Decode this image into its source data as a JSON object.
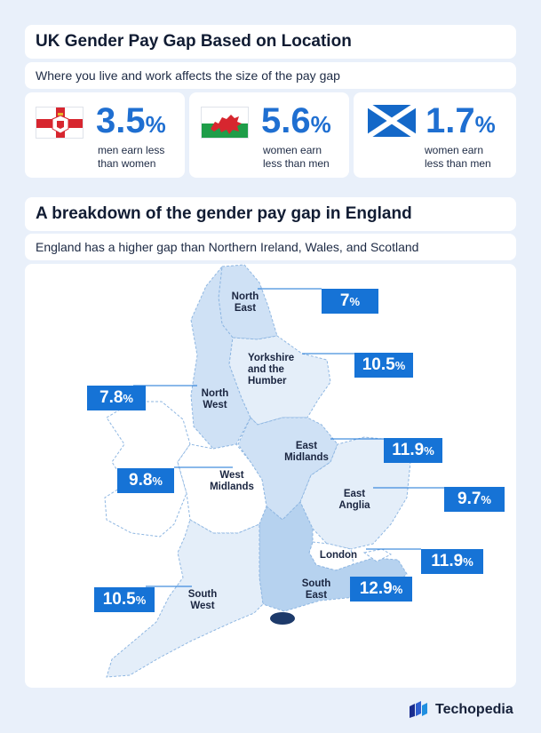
{
  "section1": {
    "title": "UK Gender Pay Gap Based on Location",
    "subtitle": "Where you live and work affects the size of the pay gap",
    "stats": [
      {
        "flag": "northern-ireland-flag",
        "value": "3.5",
        "unit": "%",
        "caption_line1": "men earn less",
        "caption_line2": "than women"
      },
      {
        "flag": "wales-flag",
        "value": "5.6",
        "unit": "%",
        "caption_line1": "women earn",
        "caption_line2": "less than men"
      },
      {
        "flag": "scotland-flag",
        "value": "1.7",
        "unit": "%",
        "caption_line1": "women earn",
        "caption_line2": "less than men"
      }
    ]
  },
  "section2": {
    "title": "A breakdown of the gender pay gap in England",
    "subtitle": "England has a higher gap than Northern Ireland, Wales, and Scotland"
  },
  "map": {
    "colors": {
      "light": "#e4eef9",
      "medium": "#cfe1f5",
      "dark": "#b6d2ef",
      "white": "#ffffff",
      "badge": "#1673d6"
    },
    "regions": [
      {
        "id": "north-east",
        "line1": "North",
        "line2": "East",
        "value": "7",
        "unit": "%",
        "shade": "medium"
      },
      {
        "id": "yorkshire",
        "line1": "Yorkshire",
        "line2": "and the",
        "line3": "Humber",
        "value": "10.5",
        "unit": "%",
        "shade": "light"
      },
      {
        "id": "north-west",
        "line1": "North",
        "line2": "West",
        "value": "7.8",
        "unit": "%",
        "shade": "medium"
      },
      {
        "id": "east-midlands",
        "line1": "East",
        "line2": "Midlands",
        "value": "11.9",
        "unit": "%",
        "shade": "medium"
      },
      {
        "id": "west-midlands",
        "line1": "West",
        "line2": "Midlands",
        "value": "9.8",
        "unit": "%",
        "shade": "white"
      },
      {
        "id": "east-anglia",
        "line1": "East",
        "line2": "Anglia",
        "value": "9.7",
        "unit": "%",
        "shade": "light"
      },
      {
        "id": "london",
        "line1": "London",
        "value": "11.9",
        "unit": "%",
        "shade": "white"
      },
      {
        "id": "south-east",
        "line1": "South",
        "line2": "East",
        "value": "12.9",
        "unit": "%",
        "shade": "dark"
      },
      {
        "id": "south-west",
        "line1": "South",
        "line2": "West",
        "value": "10.5",
        "unit": "%",
        "shade": "light"
      }
    ]
  },
  "brand": {
    "name": "Techopedia",
    "icon": "techopedia-logo-icon"
  }
}
